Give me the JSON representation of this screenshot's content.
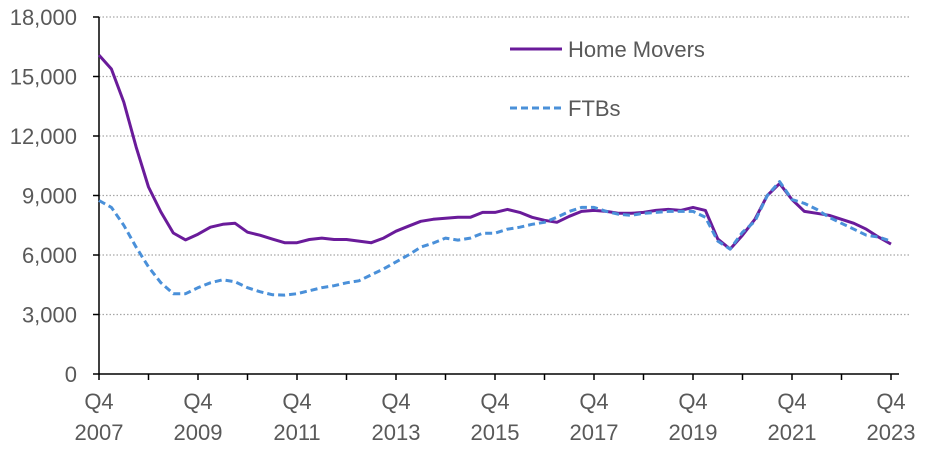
{
  "chart_data": {
    "type": "line",
    "title": "",
    "xlabel": "",
    "ylabel": "",
    "ylim": [
      0,
      18000
    ],
    "yticks": [
      0,
      3000,
      6000,
      9000,
      12000,
      15000,
      18000
    ],
    "ytick_labels": [
      "0",
      "3,000",
      "6,000",
      "9,000",
      "12,000",
      "15,000",
      "18,000"
    ],
    "xtick_labels": [
      {
        "q": "Q4",
        "year": "2007"
      },
      {
        "q": "Q4",
        "year": "2009"
      },
      {
        "q": "Q4",
        "year": "2011"
      },
      {
        "q": "Q4",
        "year": "2013"
      },
      {
        "q": "Q4",
        "year": "2015"
      },
      {
        "q": "Q4",
        "year": "2017"
      },
      {
        "q": "Q4",
        "year": "2019"
      },
      {
        "q": "Q4",
        "year": "2021"
      },
      {
        "q": "Q4",
        "year": "2023"
      }
    ],
    "x_start": "Q4 2007",
    "x_end": "Q4 2023",
    "x_frequency": "quarterly",
    "grid": "horizontal dotted",
    "legend_position": "top-right",
    "series": [
      {
        "name": "Home Movers",
        "color": "#6A1B9A",
        "style": "solid",
        "values": [
          16080,
          15380,
          13710,
          11450,
          9430,
          8170,
          7110,
          6760,
          7050,
          7400,
          7550,
          7600,
          7150,
          7000,
          6800,
          6620,
          6620,
          6780,
          6850,
          6780,
          6780,
          6700,
          6620,
          6850,
          7200,
          7450,
          7700,
          7800,
          7850,
          7900,
          7900,
          8150,
          8150,
          8300,
          8150,
          7900,
          7750,
          7650,
          7950,
          8200,
          8250,
          8200,
          8100,
          8100,
          8150,
          8250,
          8300,
          8250,
          8400,
          8250,
          6800,
          6300,
          7000,
          7800,
          9000,
          9600,
          8800,
          8200,
          8100,
          8000,
          7800,
          7600,
          7300,
          6900,
          6550
        ]
      },
      {
        "name": "FTBs",
        "color": "#4A90D9",
        "style": "dashed",
        "values": [
          8750,
          8400,
          7500,
          6400,
          5400,
          4600,
          4050,
          4050,
          4350,
          4600,
          4750,
          4650,
          4350,
          4150,
          4000,
          3980,
          4050,
          4200,
          4350,
          4450,
          4600,
          4700,
          5000,
          5300,
          5650,
          6000,
          6400,
          6600,
          6850,
          6750,
          6850,
          7100,
          7100,
          7300,
          7400,
          7550,
          7650,
          7900,
          8200,
          8400,
          8400,
          8200,
          8050,
          8000,
          8100,
          8150,
          8200,
          8200,
          8200,
          7900,
          6700,
          6300,
          7150,
          7700,
          9000,
          9700,
          8800,
          8600,
          8300,
          7900,
          7600,
          7300,
          7000,
          6900,
          6700
        ]
      }
    ]
  }
}
